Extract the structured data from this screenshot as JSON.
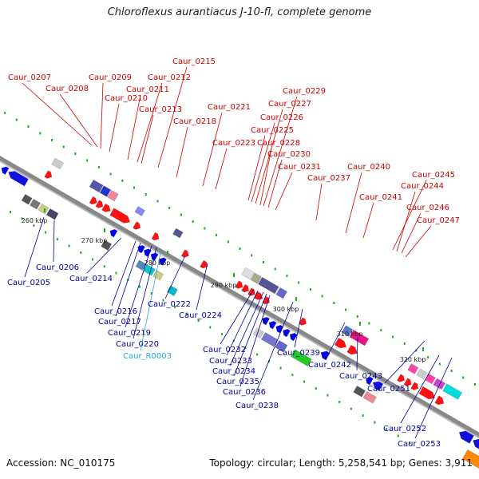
{
  "title": "Chloroflexus aurantiacus J-10-fl, complete genome",
  "footer": {
    "accession": "Accession: NC_010175",
    "summary": "Topology: circular; Length: 5,258,541 bp; Genes: 3,911"
  },
  "colors": {
    "forward_label": "#cc0000",
    "reverse_label": "#000099",
    "rna_label": "#22aadd",
    "axis": "#888888",
    "tick": "#22aa22"
  },
  "ticks": [
    {
      "label": "260 kbp"
    },
    {
      "label": "270 kbp"
    },
    {
      "label": "280 kbp"
    },
    {
      "label": "290 kbp"
    },
    {
      "label": "300 kbp"
    },
    {
      "label": "310 kbp"
    },
    {
      "label": "320 kbp"
    }
  ],
  "top_labels": [
    "Caur_0207",
    "Caur_0208",
    "Caur_0209",
    "Caur_0210",
    "Caur_0211",
    "Caur_0212",
    "Caur_0213",
    "Caur_0215",
    "Caur_0218",
    "Caur_0221",
    "Caur_0223",
    "Caur_0225",
    "Caur_0226",
    "Caur_0227",
    "Caur_0228",
    "Caur_0229",
    "Caur_0230",
    "Caur_0231",
    "Caur_0237",
    "Caur_0240",
    "Caur_0241",
    "Caur_0244",
    "Caur_0245",
    "Caur_0246",
    "Caur_0247"
  ],
  "bottom_labels": [
    "Caur_0205",
    "Caur_0206",
    "Caur_0214",
    "Caur_0216",
    "Caur_0217",
    "Caur_0219",
    "Caur_0220",
    "Caur_R0003",
    "Caur_0222",
    "Caur_0224",
    "Caur_0232",
    "Caur_0233",
    "Caur_0234",
    "Caur_0235",
    "Caur_0236",
    "Caur_0238",
    "Caur_0239",
    "Caur_0242",
    "Caur_0243",
    "Caur_0251",
    "Caur_0252",
    "Caur_0253"
  ]
}
